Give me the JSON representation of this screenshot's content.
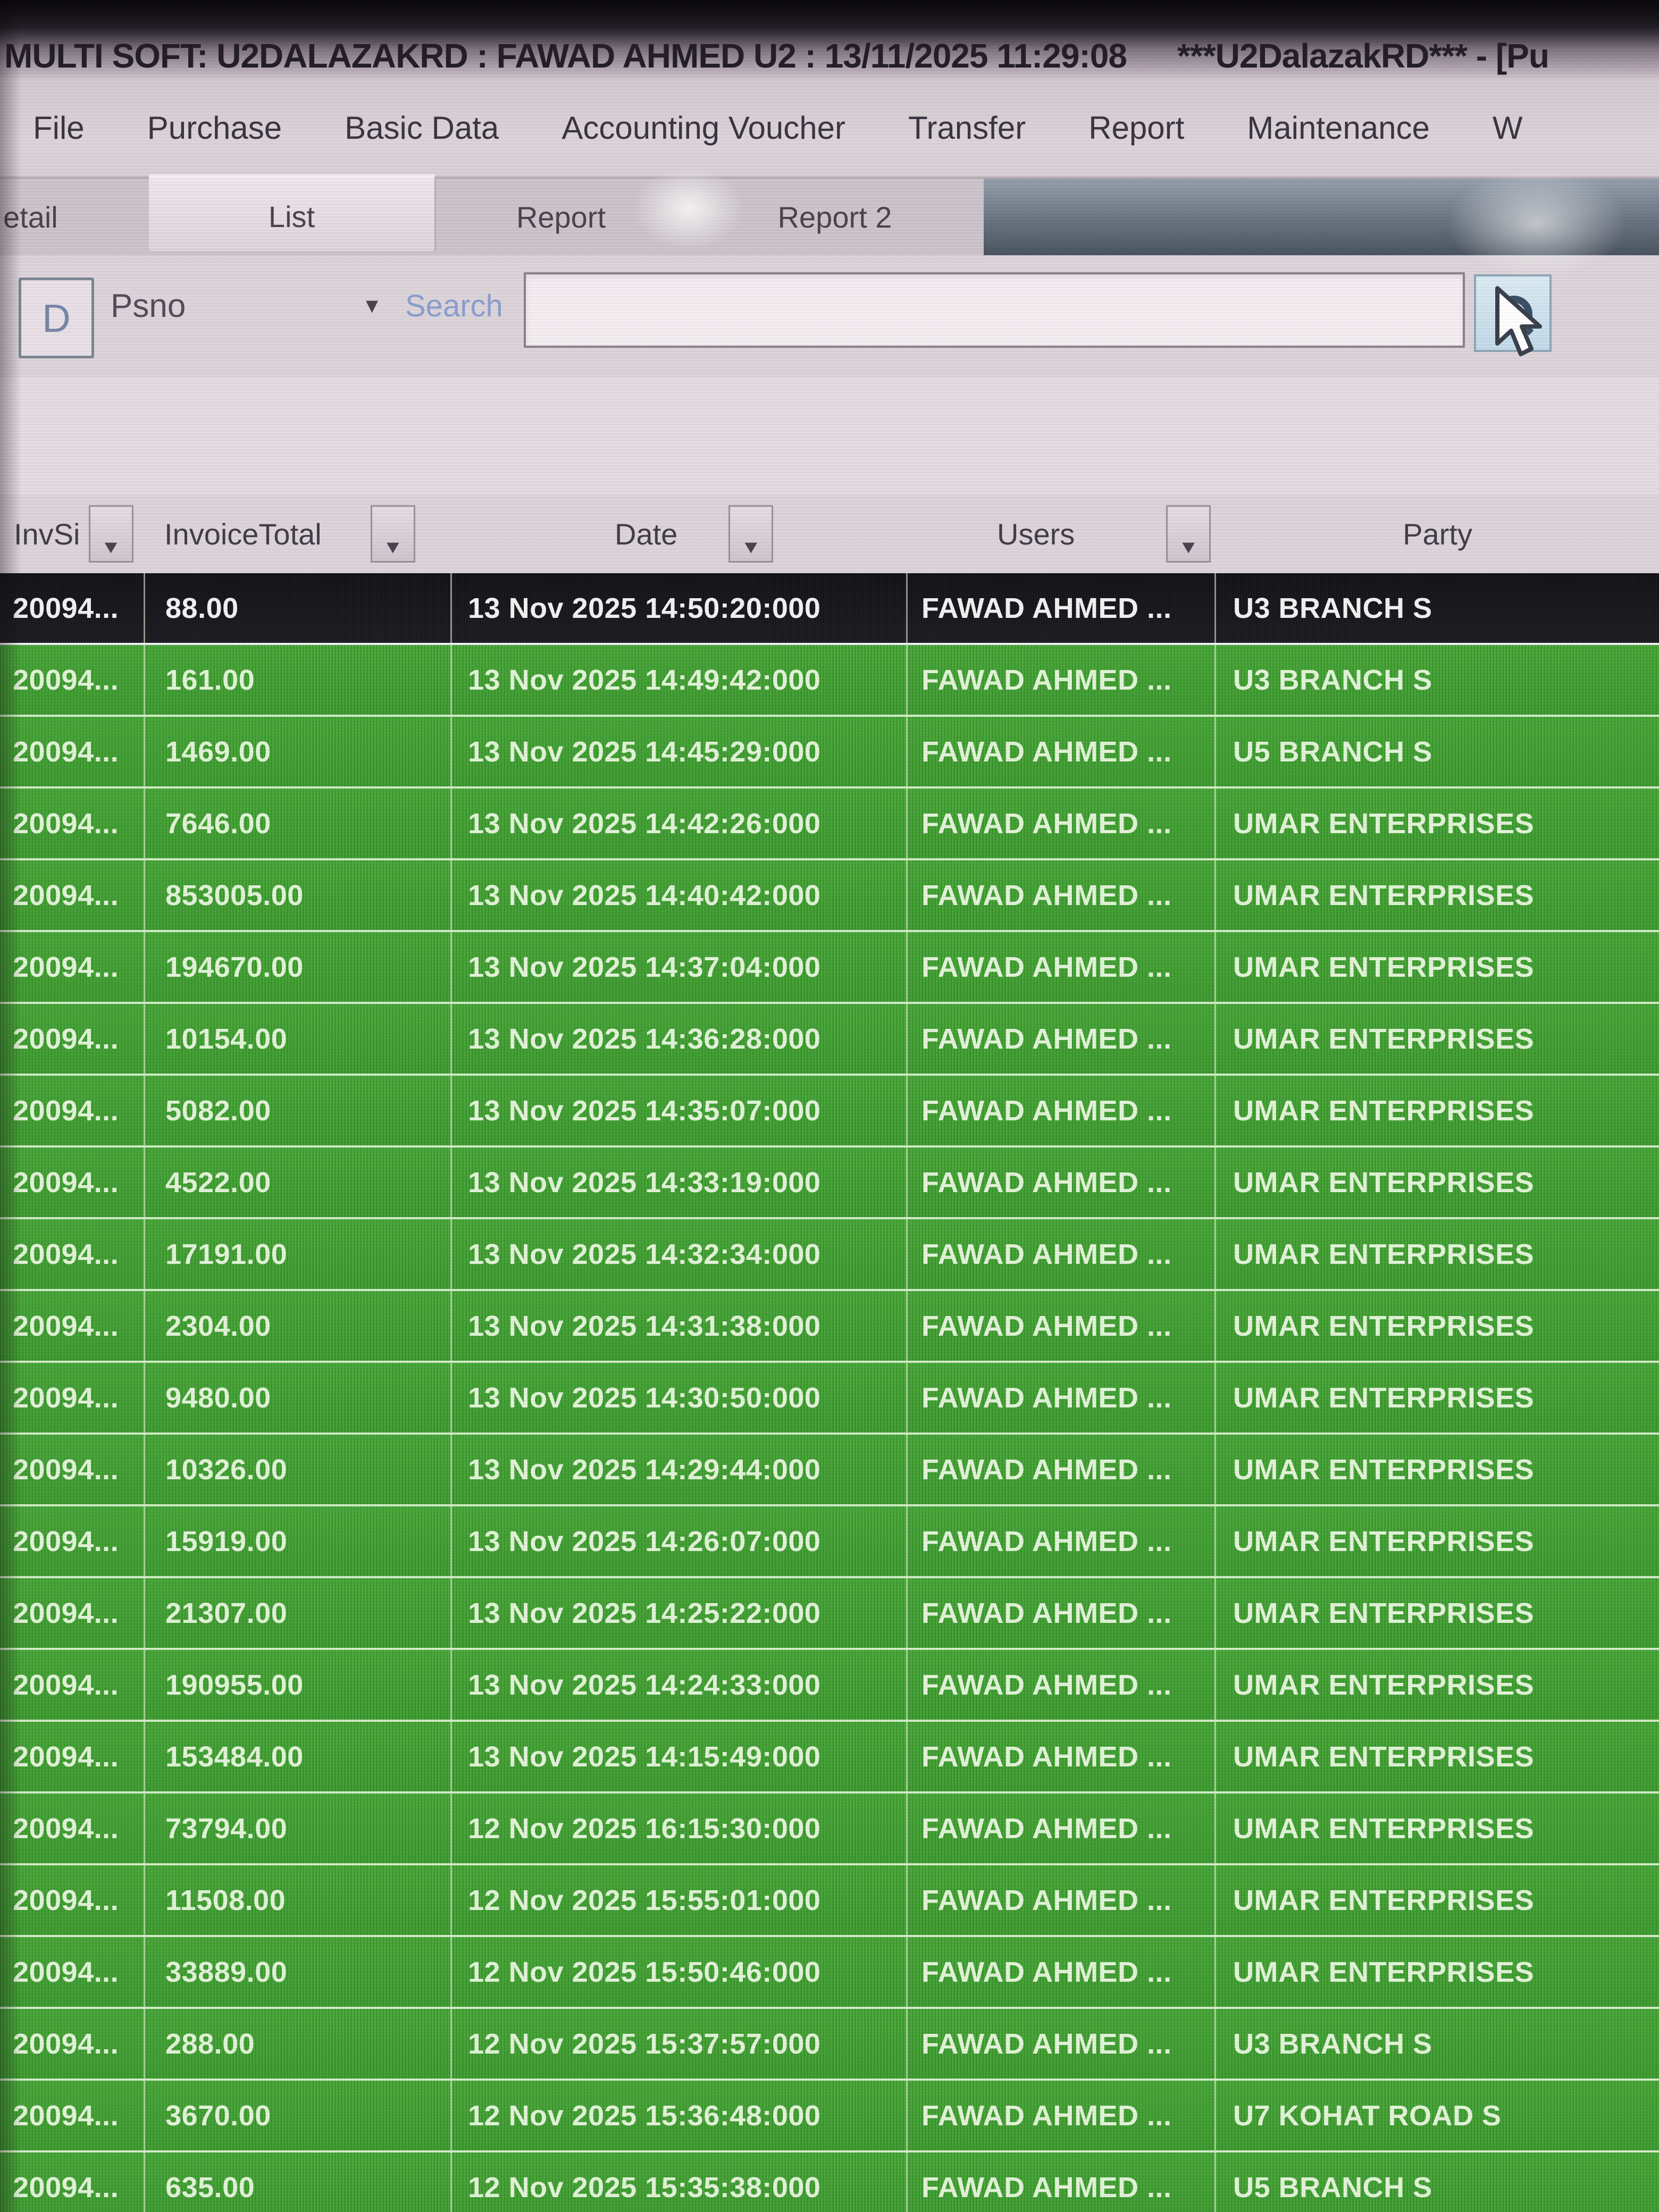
{
  "title_bar": {
    "title": "MULTI SOFT: U2DALAZAKRD : FAWAD AHMED U2 : 13/11/2025 11:29:08",
    "session": "***U2DalazakRD*** - [Pu"
  },
  "menu": {
    "items": [
      "File",
      "Purchase",
      "Basic Data",
      "Accounting Voucher",
      "Transfer",
      "Report",
      "Maintenance",
      "W"
    ]
  },
  "tabs": {
    "items": [
      {
        "label": "etail",
        "active": false
      },
      {
        "label": "List",
        "active": true
      },
      {
        "label": "Report",
        "active": false
      },
      {
        "label": "Report 2",
        "active": false
      }
    ]
  },
  "search_bar": {
    "d_button": "D",
    "field_selector": "Psno",
    "dropdown_arrow": "▾",
    "search_label": "Search",
    "input_value": "",
    "search_icon": "magnifier-icon"
  },
  "table": {
    "columns": [
      {
        "key": "inv",
        "label": "InvSi",
        "has_filter": true
      },
      {
        "key": "total",
        "label": "InvoiceTotal",
        "has_filter": true
      },
      {
        "key": "date",
        "label": "Date",
        "has_filter": true
      },
      {
        "key": "users",
        "label": "Users",
        "has_filter": true
      },
      {
        "key": "party",
        "label": "Party",
        "has_filter": false
      }
    ],
    "rows": [
      {
        "inv": "20094...",
        "total": "88.00",
        "date": "13 Nov 2025 14:50:20:000",
        "users": "FAWAD AHMED ...",
        "party": "U3 BRANCH S",
        "selected": true
      },
      {
        "inv": "20094...",
        "total": "161.00",
        "date": "13 Nov 2025 14:49:42:000",
        "users": "FAWAD AHMED ...",
        "party": "U3 BRANCH S",
        "selected": false
      },
      {
        "inv": "20094...",
        "total": "1469.00",
        "date": "13 Nov 2025 14:45:29:000",
        "users": "FAWAD AHMED ...",
        "party": "U5 BRANCH S",
        "selected": false
      },
      {
        "inv": "20094...",
        "total": "7646.00",
        "date": "13 Nov 2025 14:42:26:000",
        "users": "FAWAD AHMED ...",
        "party": "UMAR ENTERPRISES",
        "selected": false
      },
      {
        "inv": "20094...",
        "total": "853005.00",
        "date": "13 Nov 2025 14:40:42:000",
        "users": "FAWAD AHMED ...",
        "party": "UMAR ENTERPRISES",
        "selected": false
      },
      {
        "inv": "20094...",
        "total": "194670.00",
        "date": "13 Nov 2025 14:37:04:000",
        "users": "FAWAD AHMED ...",
        "party": "UMAR ENTERPRISES",
        "selected": false
      },
      {
        "inv": "20094...",
        "total": "10154.00",
        "date": "13 Nov 2025 14:36:28:000",
        "users": "FAWAD AHMED ...",
        "party": "UMAR ENTERPRISES",
        "selected": false
      },
      {
        "inv": "20094...",
        "total": "5082.00",
        "date": "13 Nov 2025 14:35:07:000",
        "users": "FAWAD AHMED ...",
        "party": "UMAR ENTERPRISES",
        "selected": false
      },
      {
        "inv": "20094...",
        "total": "4522.00",
        "date": "13 Nov 2025 14:33:19:000",
        "users": "FAWAD AHMED ...",
        "party": "UMAR ENTERPRISES",
        "selected": false
      },
      {
        "inv": "20094...",
        "total": "17191.00",
        "date": "13 Nov 2025 14:32:34:000",
        "users": "FAWAD AHMED ...",
        "party": "UMAR ENTERPRISES",
        "selected": false
      },
      {
        "inv": "20094...",
        "total": "2304.00",
        "date": "13 Nov 2025 14:31:38:000",
        "users": "FAWAD AHMED ...",
        "party": "UMAR ENTERPRISES",
        "selected": false
      },
      {
        "inv": "20094...",
        "total": "9480.00",
        "date": "13 Nov 2025 14:30:50:000",
        "users": "FAWAD AHMED ...",
        "party": "UMAR ENTERPRISES",
        "selected": false
      },
      {
        "inv": "20094...",
        "total": "10326.00",
        "date": "13 Nov 2025 14:29:44:000",
        "users": "FAWAD AHMED ...",
        "party": "UMAR ENTERPRISES",
        "selected": false
      },
      {
        "inv": "20094...",
        "total": "15919.00",
        "date": "13 Nov 2025 14:26:07:000",
        "users": "FAWAD AHMED ...",
        "party": "UMAR ENTERPRISES",
        "selected": false
      },
      {
        "inv": "20094...",
        "total": "21307.00",
        "date": "13 Nov 2025 14:25:22:000",
        "users": "FAWAD AHMED ...",
        "party": "UMAR ENTERPRISES",
        "selected": false
      },
      {
        "inv": "20094...",
        "total": "190955.00",
        "date": "13 Nov 2025 14:24:33:000",
        "users": "FAWAD AHMED ...",
        "party": "UMAR ENTERPRISES",
        "selected": false
      },
      {
        "inv": "20094...",
        "total": "153484.00",
        "date": "13 Nov 2025 14:15:49:000",
        "users": "FAWAD AHMED ...",
        "party": "UMAR ENTERPRISES",
        "selected": false
      },
      {
        "inv": "20094...",
        "total": "73794.00",
        "date": "12 Nov 2025 16:15:30:000",
        "users": "FAWAD AHMED ...",
        "party": "UMAR ENTERPRISES",
        "selected": false
      },
      {
        "inv": "20094...",
        "total": "11508.00",
        "date": "12 Nov 2025 15:55:01:000",
        "users": "FAWAD AHMED ...",
        "party": "UMAR ENTERPRISES",
        "selected": false
      },
      {
        "inv": "20094...",
        "total": "33889.00",
        "date": "12 Nov 2025 15:50:46:000",
        "users": "FAWAD AHMED ...",
        "party": "UMAR ENTERPRISES",
        "selected": false
      },
      {
        "inv": "20094...",
        "total": "288.00",
        "date": "12 Nov 2025 15:37:57:000",
        "users": "FAWAD AHMED ...",
        "party": "U3 BRANCH S",
        "selected": false
      },
      {
        "inv": "20094...",
        "total": "3670.00",
        "date": "12 Nov 2025 15:36:48:000",
        "users": "FAWAD AHMED ...",
        "party": "U7 KOHAT ROAD S",
        "selected": false
      },
      {
        "inv": "20094...",
        "total": "635.00",
        "date": "12 Nov 2025 15:35:38:000",
        "users": "FAWAD AHMED ...",
        "party": "U5 BRANCH S",
        "selected": false
      }
    ]
  },
  "colors": {
    "row_green": "#42a034",
    "selected_row": "#17171c",
    "header_bg": "#ddd5db",
    "search_label_blue": "#8ba0d0",
    "tab_dark_band": "#5b6573",
    "grid_line": "#ecfae2"
  }
}
